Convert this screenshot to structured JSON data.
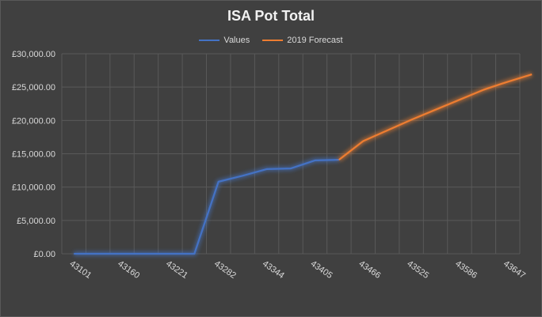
{
  "chart_data": {
    "type": "line",
    "title": "ISA Pot Total",
    "xlabel": "",
    "ylabel": "",
    "grid": true,
    "legend_position": "top",
    "ylim": [
      0,
      30000
    ],
    "y_ticks": [
      "£0.00",
      "£5,000.00",
      "£10,000.00",
      "£15,000.00",
      "£20,000.00",
      "£25,000.00",
      "£30,000.00"
    ],
    "x_ticks": [
      "43101",
      "43160",
      "43221",
      "43282",
      "43344",
      "43405",
      "43466",
      "43525",
      "43586",
      "43647"
    ],
    "series": [
      {
        "name": "Values",
        "color": "#4472c4",
        "points": [
          {
            "i": 0,
            "v": 0
          },
          {
            "i": 1,
            "v": 0
          },
          {
            "i": 2,
            "v": 0
          },
          {
            "i": 3,
            "v": 0
          },
          {
            "i": 4,
            "v": 0
          },
          {
            "i": 5,
            "v": 0
          },
          {
            "i": 6,
            "v": 10800
          },
          {
            "i": 7,
            "v": 11700
          },
          {
            "i": 8,
            "v": 12700
          },
          {
            "i": 9,
            "v": 12800
          },
          {
            "i": 10,
            "v": 14000
          },
          {
            "i": 11,
            "v": 14100
          }
        ]
      },
      {
        "name": "2019 Forecast",
        "color": "#ed7d31",
        "points": [
          {
            "i": 11,
            "v": 14100
          },
          {
            "i": 12,
            "v": 16900
          },
          {
            "i": 13,
            "v": 18500
          },
          {
            "i": 14,
            "v": 20100
          },
          {
            "i": 15,
            "v": 21600
          },
          {
            "i": 16,
            "v": 23100
          },
          {
            "i": 17,
            "v": 24600
          },
          {
            "i": 18,
            "v": 25800
          },
          {
            "i": 19,
            "v": 26900
          }
        ]
      }
    ]
  }
}
